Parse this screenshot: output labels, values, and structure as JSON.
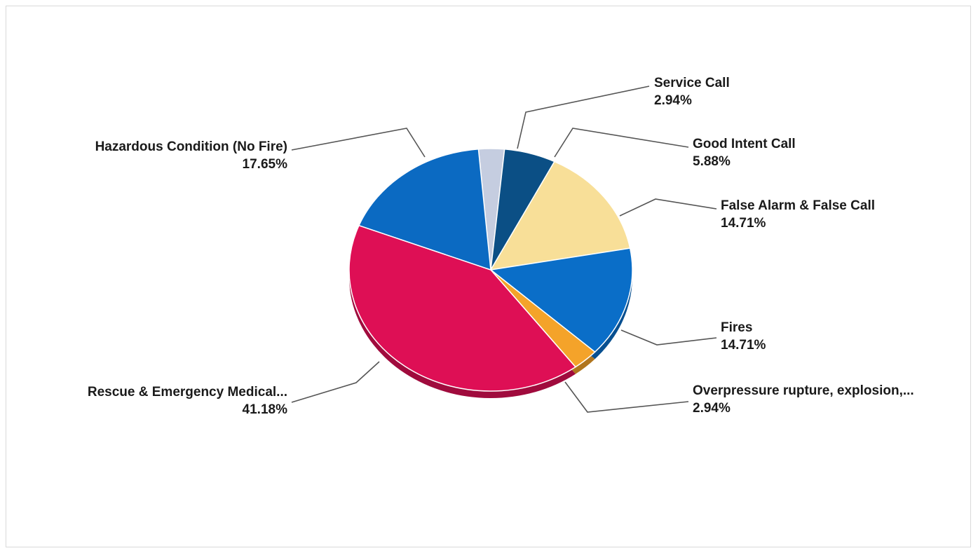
{
  "chart_data": {
    "type": "pie",
    "title": "",
    "slices": [
      {
        "label": "Service Call",
        "value": 2.94,
        "value_label": "2.94%",
        "color": "#c5cde0"
      },
      {
        "label": "Good Intent Call",
        "value": 5.88,
        "value_label": "5.88%",
        "color": "#0b4f85"
      },
      {
        "label": "False Alarm & False Call",
        "value": 14.71,
        "value_label": "14.71%",
        "color": "#f8df98"
      },
      {
        "label": "Fires",
        "value": 14.71,
        "value_label": "14.71%",
        "color": "#0a6ec8"
      },
      {
        "label": "Overpressure  rupture,  explosion,...",
        "value": 2.94,
        "value_label": "2.94%",
        "color": "#f4a32a"
      },
      {
        "label": "Rescue & Emergency Medical...",
        "value": 41.18,
        "value_label": "41.18%",
        "color": "#de0f55"
      },
      {
        "label": "Hazardous Condition (No Fire)",
        "value": 17.65,
        "value_label": "17.65%",
        "color": "#0b6ac2"
      }
    ],
    "legend": "none",
    "labels": "outside with leader lines"
  }
}
